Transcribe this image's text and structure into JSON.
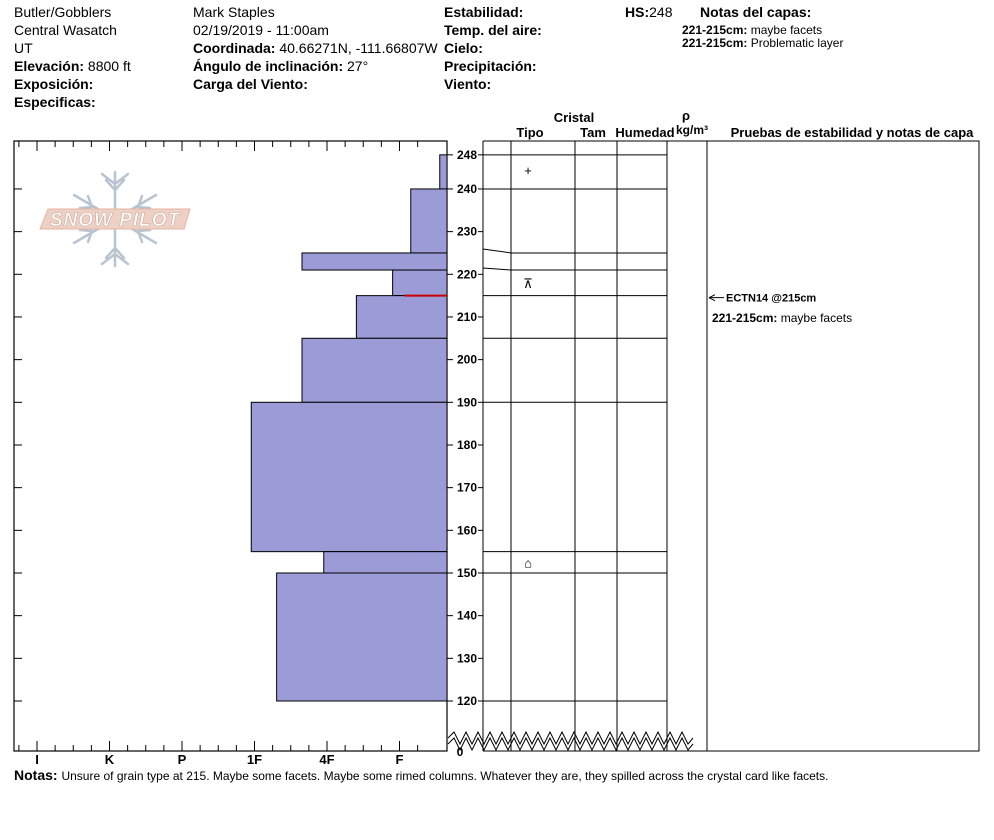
{
  "header": {
    "location": "Butler/Gobblers",
    "range": "Central Wasatch",
    "state": "UT",
    "elevation_label": "Elevación:",
    "elevation_value": "8800 ft",
    "aspect_label": "Exposición:",
    "specifics_label": "Especificas:",
    "observer": "Mark Staples",
    "datetime": "02/19/2019 - 11:00am",
    "coord_label": "Coordinada:",
    "coord_value": "40.66271N, -111.66807W",
    "slope_label": "Ángulo de inclinación:",
    "slope_value": "27°",
    "wind_load_label": "Carga del Viento:",
    "stability_label": "Estabilidad:",
    "air_temp_label": "Temp. del aire:",
    "sky_label": "Cielo:",
    "precip_label": "Precipitación:",
    "wind_label": "Viento:",
    "hs_label": "HS:",
    "hs_value": "248",
    "layer_notes_title": "Notas del capas:",
    "layer_notes": [
      {
        "range": "221-215cm:",
        "text": "maybe facets"
      },
      {
        "range": "221-215cm:",
        "text": "Problematic layer"
      }
    ]
  },
  "logo": {
    "text": "SNOW PILOT"
  },
  "column_headers": {
    "cristal": "Cristal",
    "tipo": "Tipo",
    "tam": "Tam",
    "humedad": "Humedad",
    "rho": "ρ",
    "density_unit": "kg/m³",
    "tests": "Pruebas de estabilidad y notas de capa"
  },
  "stability_tests": [
    {
      "label": "ECTN14 @215cm",
      "depth": 215
    }
  ],
  "test_layer_note": {
    "range": "221-215cm:",
    "text": "maybe facets"
  },
  "crystal_symbols": [
    {
      "depth": 244.5,
      "symbol": "+"
    },
    {
      "depth": 218,
      "symbol": "⊼"
    },
    {
      "depth": 152.5,
      "symbol": "⌂"
    }
  ],
  "notes": {
    "label": "Notas:",
    "text": "Unsure of grain type at 215. Maybe some facets. Maybe some rimed columns. Whatever they are, they spilled across the crystal card like facets."
  },
  "colors": {
    "hardness_fill": "#9b9bd7",
    "weak_layer": "#cc0000"
  },
  "chart_data": {
    "type": "bar",
    "orientation": "horizontal-step",
    "xlabel": "",
    "ylabel": "",
    "x_categories": [
      "I",
      "K",
      "P",
      "1F",
      "4F",
      "F"
    ],
    "y_ticks": [
      248,
      240,
      230,
      220,
      210,
      200,
      190,
      180,
      170,
      160,
      150,
      140,
      130,
      120
    ],
    "y_zero_label": "0",
    "ylim": [
      120,
      250
    ],
    "layers": [
      {
        "top": 248,
        "bottom": 240,
        "hardness": 0.1
      },
      {
        "top": 240,
        "bottom": 225,
        "hardness": 0.5
      },
      {
        "top": 225,
        "bottom": 221,
        "hardness": 2.0
      },
      {
        "top": 221,
        "bottom": 215,
        "hardness": 0.75
      },
      {
        "top": 215,
        "bottom": 205,
        "hardness": 1.25
      },
      {
        "top": 205,
        "bottom": 190,
        "hardness": 2.0
      },
      {
        "top": 190,
        "bottom": 155,
        "hardness": 2.7
      },
      {
        "top": 155,
        "bottom": 150,
        "hardness": 1.7
      },
      {
        "top": 150,
        "bottom": 120,
        "hardness": 2.35
      }
    ],
    "layer_boundaries": [
      248,
      240,
      225,
      221,
      215,
      205,
      190,
      155,
      150,
      120
    ],
    "weak_layer_depth": 215
  }
}
